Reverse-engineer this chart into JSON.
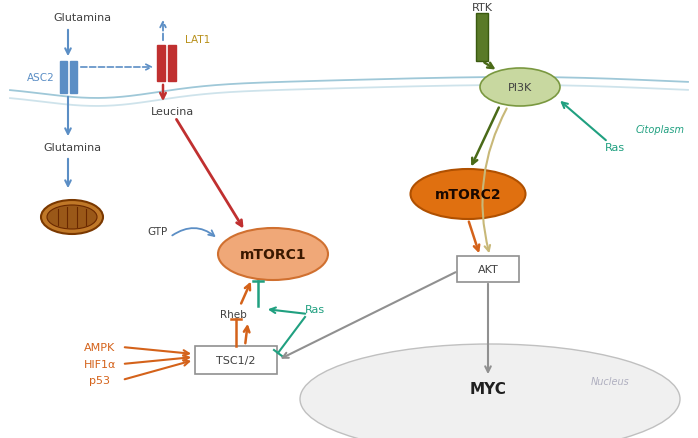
{
  "bg_color": "#ffffff",
  "colors": {
    "blue": "#5b8ec5",
    "red": "#c0392b",
    "orange": "#d4621a",
    "green_dark": "#4a6a18",
    "green_teal": "#20a080",
    "tan": "#c8b878",
    "gray": "#909090",
    "membrane": "#9fc8d8",
    "mtorc1_fill": "#f0a878",
    "mtorc1_edge": "#d07030",
    "mtorc2_fill": "#e07010",
    "mtorc2_edge": "#b05000",
    "pi3k_fill": "#c8d8a0",
    "pi3k_edge": "#7a9840",
    "rtk_fill": "#5a7a28",
    "mito_outer": "#c07028",
    "mito_inner": "#8b4000",
    "nucleus_fill": "#f0f0f0",
    "nucleus_edge": "#c0c0c0",
    "tsc_fill": "#ffffff",
    "tsc_edge": "#909090",
    "akt_fill": "#ffffff",
    "akt_edge": "#909090"
  },
  "labels": {
    "glutamina_top": "Glutamina",
    "asc2": "ASC2",
    "lat1": "LAT1",
    "leucina": "Leucina",
    "glutamina_mid": "Glutamina",
    "gtp": "GTP",
    "mtorc1": "mTORC1",
    "mtorc2": "mTORC2",
    "rheb": "Rheb",
    "ras_bottom": "Ras",
    "ampk": "AMPK",
    "hif1a": "HIF1α",
    "p53": "p53",
    "tsc12": "TSC1/2",
    "rtk": "RTK",
    "pi3k": "PI3K",
    "ras_right": "Ras",
    "akt": "AKT",
    "myc": "MYC",
    "citoplasm": "Citoplasm",
    "nucleus": "Nucleus"
  }
}
